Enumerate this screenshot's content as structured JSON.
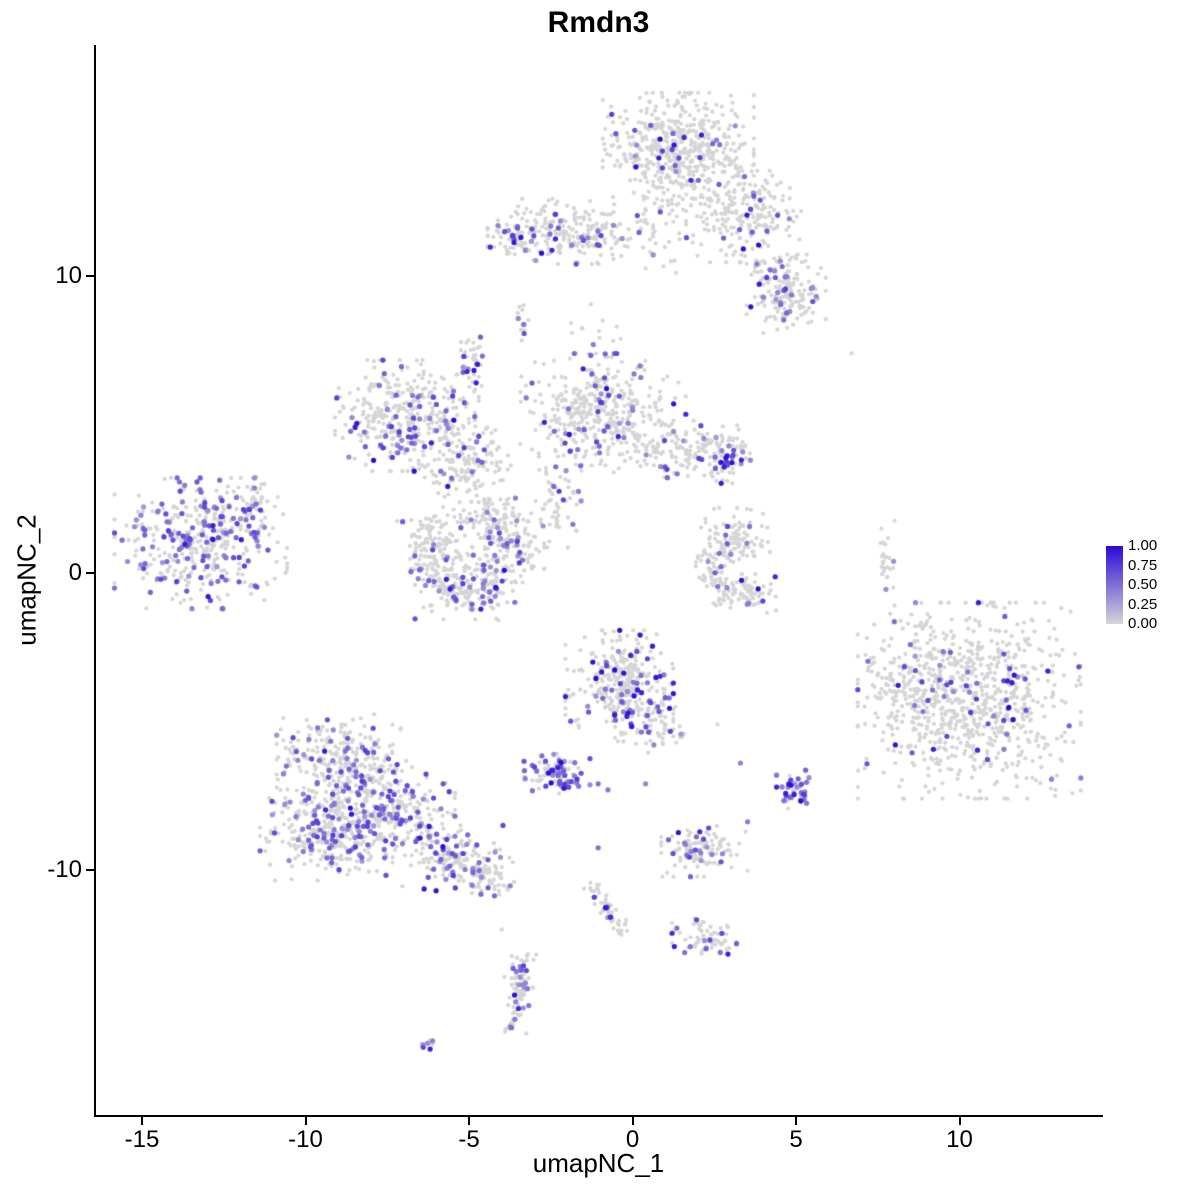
{
  "title": "Rmdn3",
  "axes": {
    "x": {
      "label": "umapNC_1",
      "ticks": [
        {
          "value": -15,
          "label": "-15"
        },
        {
          "value": -10,
          "label": "-10"
        },
        {
          "value": -5,
          "label": "-5"
        },
        {
          "value": 0,
          "label": "0"
        },
        {
          "value": 5,
          "label": "5"
        },
        {
          "value": 10,
          "label": "10"
        }
      ]
    },
    "y": {
      "label": "umapNC_2",
      "ticks": [
        {
          "value": 10,
          "label": "10"
        },
        {
          "value": 0,
          "label": "0"
        },
        {
          "value": -10,
          "label": "-10"
        }
      ]
    }
  },
  "legend": {
    "labels": [
      "1.00",
      "0.75",
      "0.50",
      "0.25",
      "0.00"
    ],
    "color_high": "#2A0AD8",
    "color_low": "#D5D5D5"
  },
  "chart_data": {
    "type": "scatter",
    "title": "Rmdn3",
    "xlabel": "umapNC_1",
    "ylabel": "umapNC_2",
    "xlim": [
      -16.4,
      14.4
    ],
    "ylim": [
      -18.3,
      17.8
    ],
    "grid": false,
    "legend_position": "right",
    "color_scale": {
      "min": 0.0,
      "max": 1.0
    },
    "point_color_low": "#D5D5D5",
    "point_color_high": "#2A0AD8",
    "clusters": [
      {
        "name": "top-main",
        "cx": 1.4,
        "cy": 14.3,
        "sx": 1.05,
        "sy": 0.85,
        "n": 520,
        "f_mid": 0.05,
        "f_high": 0.008
      },
      {
        "name": "top-arm",
        "cx": 3.4,
        "cy": 12.0,
        "sx": 0.8,
        "sy": 0.7,
        "n": 220,
        "f_mid": 0.05,
        "f_high": 0.01
      },
      {
        "name": "top-right-knob",
        "cx": 4.7,
        "cy": 9.4,
        "sx": 0.55,
        "sy": 0.6,
        "n": 170,
        "f_mid": 0.18,
        "f_high": 0.02
      },
      {
        "name": "top-bridge",
        "cx": 0.9,
        "cy": 11.9,
        "sx": 0.45,
        "sy": 0.9,
        "n": 45,
        "f_mid": 0.05,
        "f_high": 0
      },
      {
        "name": "upper-band",
        "cx": -1.9,
        "cy": 11.5,
        "sx": 1.15,
        "sy": 0.5,
        "n": 250,
        "f_mid": 0.1,
        "f_high": 0.016
      },
      {
        "name": "upper-band-left",
        "cx": -3.55,
        "cy": 11.35,
        "sx": 0.35,
        "sy": 0.3,
        "n": 40,
        "f_mid": 0.12,
        "f_high": 0.06
      },
      {
        "name": "mid-left-main",
        "cx": -6.9,
        "cy": 5.3,
        "sx": 1.0,
        "sy": 0.85,
        "n": 380,
        "f_mid": 0.17,
        "f_high": 0.01
      },
      {
        "name": "mid-left-arm",
        "cx": -5.0,
        "cy": 3.7,
        "sx": 0.7,
        "sy": 0.6,
        "n": 140,
        "f_mid": 0.12,
        "f_high": 0.008
      },
      {
        "name": "mid-left-spur",
        "cx": -4.85,
        "cy": 7.2,
        "sx": 0.2,
        "sy": 0.5,
        "n": 32,
        "f_mid": 0.3,
        "f_high": 0.04
      },
      {
        "name": "central-main",
        "cx": -0.9,
        "cy": 5.3,
        "sx": 1.15,
        "sy": 0.95,
        "n": 420,
        "f_mid": 0.1,
        "f_high": 0.02
      },
      {
        "name": "central-arm",
        "cx": 1.7,
        "cy": 4.2,
        "sx": 0.8,
        "sy": 0.5,
        "n": 130,
        "f_mid": 0.06,
        "f_high": 0.008
      },
      {
        "name": "central-knob",
        "cx": 2.95,
        "cy": 3.9,
        "sx": 0.35,
        "sy": 0.4,
        "n": 60,
        "f_mid": 0.3,
        "f_high": 0.03
      },
      {
        "name": "central-tail",
        "cx": -2.3,
        "cy": 2.5,
        "sx": 0.4,
        "sy": 0.75,
        "n": 55,
        "f_mid": 0.15,
        "f_high": 0
      },
      {
        "name": "upper-bridge",
        "cx": -1.0,
        "cy": 7.7,
        "sx": 0.5,
        "sy": 0.7,
        "n": 22,
        "f_mid": 0.05,
        "f_high": 0
      },
      {
        "name": "left-streak",
        "cx": -3.4,
        "cy": 8.6,
        "sx": 0.14,
        "sy": 0.5,
        "n": 14,
        "f_mid": 0.4,
        "f_high": 0
      },
      {
        "name": "far-left",
        "cx": -13.2,
        "cy": 1.0,
        "sx": 1.2,
        "sy": 1.0,
        "n": 400,
        "f_mid": 0.32,
        "f_high": 0.015
      },
      {
        "name": "far-left-arm",
        "cx": -11.6,
        "cy": 2.3,
        "sx": 0.3,
        "sy": 0.5,
        "n": 40,
        "f_mid": 0.18,
        "f_high": 0
      },
      {
        "name": "hook-left",
        "cx": -6.15,
        "cy": 0.9,
        "sx": 0.5,
        "sy": 0.6,
        "n": 140,
        "f_mid": 0.08,
        "f_high": 0.02
      },
      {
        "name": "hook-bottom",
        "cx": -5.0,
        "cy": -0.5,
        "sx": 0.75,
        "sy": 0.5,
        "n": 190,
        "f_mid": 0.15,
        "f_high": 0.02
      },
      {
        "name": "hook-right",
        "cx": -3.8,
        "cy": 1.0,
        "sx": 0.5,
        "sy": 0.6,
        "n": 130,
        "f_mid": 0.12,
        "f_high": 0.01
      },
      {
        "name": "hook-top",
        "cx": -4.5,
        "cy": 1.95,
        "sx": 0.6,
        "sy": 0.3,
        "n": 70,
        "f_mid": 0.06,
        "f_high": 0
      },
      {
        "name": "mid-c-top",
        "cx": 3.1,
        "cy": 1.2,
        "sx": 0.5,
        "sy": 0.45,
        "n": 110,
        "f_mid": 0.05,
        "f_high": 0
      },
      {
        "name": "mid-c-left",
        "cx": 2.5,
        "cy": -0.1,
        "sx": 0.3,
        "sy": 0.45,
        "n": 60,
        "f_mid": 0.05,
        "f_high": 0
      },
      {
        "name": "mid-c-bottom",
        "cx": 3.4,
        "cy": -0.7,
        "sx": 0.45,
        "sy": 0.3,
        "n": 70,
        "f_mid": 0.05,
        "f_high": 0.025
      },
      {
        "name": "thin-streak",
        "cx": 7.75,
        "cy": 0.55,
        "sx": 0.12,
        "sy": 0.55,
        "n": 26,
        "f_mid": 0.06,
        "f_high": 0
      },
      {
        "name": "right-main",
        "cx": 10.3,
        "cy": -4.3,
        "sx": 1.55,
        "sy": 1.5,
        "n": 820,
        "f_mid": 0.05,
        "f_high": 0.012
      },
      {
        "name": "right-left-arm",
        "cx": 8.3,
        "cy": -3.4,
        "sx": 0.5,
        "sy": 0.8,
        "n": 90,
        "f_mid": 0.08,
        "f_high": 0
      },
      {
        "name": "center-low",
        "cx": -0.4,
        "cy": -3.8,
        "sx": 0.75,
        "sy": 0.85,
        "n": 320,
        "f_mid": 0.1,
        "f_high": 0.05
      },
      {
        "name": "center-low-tail",
        "cx": 0.7,
        "cy": -5.0,
        "sx": 0.4,
        "sy": 0.5,
        "n": 70,
        "f_mid": 0.15,
        "f_high": 0.015
      },
      {
        "name": "small-dense",
        "cx": -2.4,
        "cy": -6.7,
        "sx": 0.5,
        "sy": 0.33,
        "n": 90,
        "f_mid": 0.3,
        "f_high": 0.1
      },
      {
        "name": "tiny-purple",
        "cx": 5.0,
        "cy": -7.3,
        "sx": 0.27,
        "sy": 0.3,
        "n": 40,
        "f_mid": 0.6,
        "f_high": 0.12
      },
      {
        "name": "bottom-left-top",
        "cx": -8.9,
        "cy": -6.3,
        "sx": 0.9,
        "sy": 0.7,
        "n": 270,
        "f_mid": 0.2,
        "f_high": 0.008
      },
      {
        "name": "bottom-left-mid",
        "cx": -9.3,
        "cy": -8.6,
        "sx": 0.95,
        "sy": 0.8,
        "n": 320,
        "f_mid": 0.28,
        "f_high": 0.008
      },
      {
        "name": "bottom-left-right",
        "cx": -7.3,
        "cy": -8.1,
        "sx": 0.85,
        "sy": 0.75,
        "n": 240,
        "f_mid": 0.22,
        "f_high": 0.008
      },
      {
        "name": "bottom-left-arm",
        "cx": -5.5,
        "cy": -9.6,
        "sx": 0.7,
        "sy": 0.5,
        "n": 150,
        "f_mid": 0.18,
        "f_high": 0.008
      },
      {
        "name": "bottom-left-tip",
        "cx": -4.4,
        "cy": -10.2,
        "sx": 0.4,
        "sy": 0.35,
        "n": 60,
        "f_mid": 0.12,
        "f_high": 0
      },
      {
        "name": "low-right-small",
        "cx": 2.2,
        "cy": -9.3,
        "sx": 0.6,
        "sy": 0.42,
        "n": 110,
        "f_mid": 0.2,
        "f_high": 0.01
      },
      {
        "name": "diag-streak",
        "shape": "line",
        "x1": -1.2,
        "y1": -10.6,
        "x2": -0.3,
        "y2": -12.1,
        "jitter": 0.12,
        "n": 55,
        "f_mid": 0.08,
        "f_high": 0.04
      },
      {
        "name": "small-bottom",
        "cx": 2.2,
        "cy": -12.3,
        "sx": 0.45,
        "sy": 0.3,
        "n": 70,
        "f_mid": 0.18,
        "f_high": 0.015
      },
      {
        "name": "bottom-streak",
        "shape": "line",
        "x1": -3.35,
        "y1": -13.0,
        "x2": -3.65,
        "y2": -15.4,
        "jitter": 0.18,
        "n": 85,
        "f_mid": 0.3,
        "f_high": 0.02
      },
      {
        "name": "tiny-bottom",
        "cx": -6.25,
        "cy": -15.85,
        "sx": 0.15,
        "sy": 0.12,
        "n": 8,
        "f_mid": 0.3,
        "f_high": 0.4
      }
    ],
    "singles": [
      [
        3.5,
        12.05,
        0.95
      ],
      [
        6.7,
        7.4,
        0
      ],
      [
        3.8,
        10.4,
        0.45
      ],
      [
        -1.05,
        -9.25,
        0.5
      ],
      [
        12.7,
        -3.3,
        0.9
      ],
      [
        7.75,
        -0.55,
        0.35
      ],
      [
        2.6,
        -5.1,
        0
      ],
      [
        -4.0,
        -12.0,
        0
      ],
      [
        -1.05,
        -7.1,
        0.5
      ],
      [
        -0.75,
        -7.3,
        0.45
      ],
      [
        0.4,
        -7.1,
        0.4
      ],
      [
        3.3,
        -6.4,
        0.4
      ]
    ]
  }
}
